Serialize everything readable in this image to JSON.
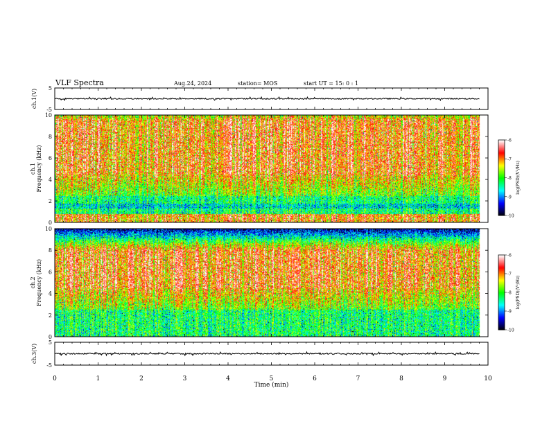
{
  "header": {
    "title": "VLF Spectra",
    "date": "Aug.24, 2024",
    "station": "station= MOS",
    "start": "start UT =  15: 0  : 1"
  },
  "chart_data": {
    "type": "heatmap",
    "x_axis": {
      "label": "Time  (min)",
      "range": [
        0,
        10
      ],
      "ticks": [
        "0",
        "1",
        "2",
        "3",
        "4",
        "5",
        "6",
        "7",
        "8",
        "9",
        "10"
      ]
    },
    "panels": [
      {
        "id": "ch1-waveform",
        "type": "line",
        "ylabel": "ch.1(V)",
        "ylim": [
          -5,
          5
        ],
        "yticks": [
          "5",
          "-5"
        ],
        "baseline": 0,
        "data_end_min": 9.8
      },
      {
        "id": "ch1-spectrogram",
        "type": "heatmap",
        "ylabel": "ch.1\nFrequency (kHz)",
        "ylim": [
          0,
          10
        ],
        "yticks": [
          "0",
          "2",
          "4",
          "6",
          "8",
          "10"
        ],
        "data_end_min": 9.8,
        "dominant_band_khz": [
          4.5,
          9.5
        ]
      },
      {
        "id": "ch2-spectrogram",
        "type": "heatmap",
        "ylabel": "ch.2\nFrequency (kHz)",
        "ylim": [
          0,
          10
        ],
        "yticks": [
          "0",
          "2",
          "4",
          "6",
          "8",
          "10"
        ],
        "data_end_min": 9.8,
        "dominant_band_khz": [
          4.5,
          8.0
        ]
      },
      {
        "id": "ch3-waveform",
        "type": "line",
        "ylabel": "ch.3(V)",
        "ylim": [
          -5,
          5
        ],
        "yticks": [
          "5",
          "-5"
        ],
        "baseline": 0,
        "data_end_min": 9.8
      }
    ],
    "colorbar": {
      "label": "log(PSD)(V²/Hz)",
      "range": [
        -10,
        -6
      ],
      "ticks": [
        "-6",
        "-7",
        "-8",
        "-9",
        "-10"
      ],
      "colors": [
        "#000000",
        "#0000ff",
        "#00ffff",
        "#00ff00",
        "#ffff00",
        "#ff0000",
        "#ffffff"
      ]
    }
  }
}
